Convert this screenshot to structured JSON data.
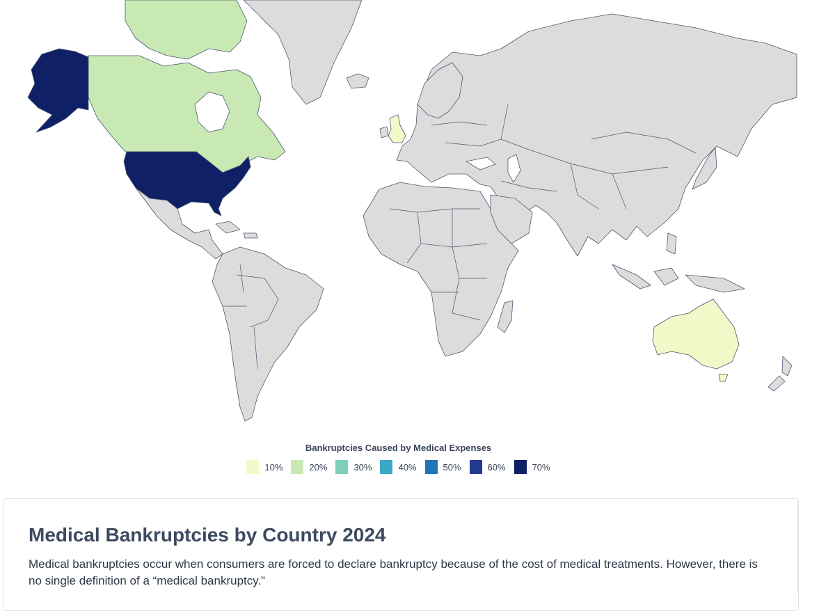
{
  "map": {
    "legend_title": "Bankruptcies Caused by Medical Expenses",
    "legend": [
      {
        "label": "10%",
        "color": "#f1f9c8"
      },
      {
        "label": "20%",
        "color": "#c9e9b4"
      },
      {
        "label": "30%",
        "color": "#7fcdbb"
      },
      {
        "label": "40%",
        "color": "#3ba8c6"
      },
      {
        "label": "50%",
        "color": "#2275b4"
      },
      {
        "label": "60%",
        "color": "#223b91"
      },
      {
        "label": "70%",
        "color": "#0f2067"
      }
    ],
    "no_data_color": "#dcdcdc",
    "highlighted_countries": [
      {
        "country": "United States",
        "bucket": "70%"
      },
      {
        "country": "Canada",
        "bucket": "20%"
      },
      {
        "country": "United Kingdom",
        "bucket": "10%"
      },
      {
        "country": "Australia",
        "bucket": "10%"
      }
    ]
  },
  "article": {
    "title": "Medical Bankruptcies by Country 2024",
    "text": "Medical bankruptcies occur when consumers are forced to declare bankruptcy because of the cost of medical treatments. However, there is no single definition of a “medical bankruptcy.”"
  }
}
